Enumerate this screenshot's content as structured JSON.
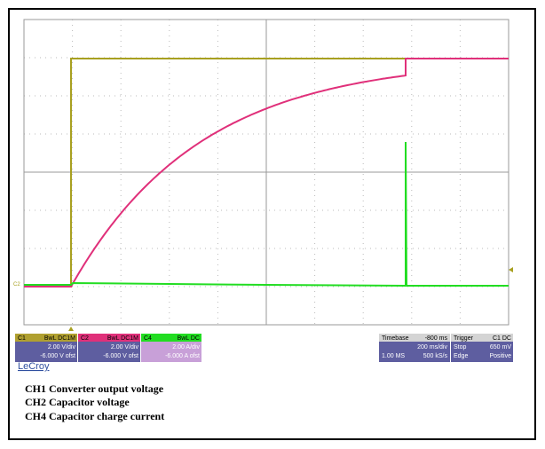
{
  "channels": [
    {
      "label": "C1",
      "coupling": "BwL DC1M",
      "scale": "2.00 V/div",
      "offset": "-6.000 V ofst"
    },
    {
      "label": "C2",
      "coupling": "BwL DC1M",
      "scale": "2.00 V/div",
      "offset": "-6.000 V ofst"
    },
    {
      "label": "C4",
      "coupling": "BwL DC",
      "scale": "2.00 A/div",
      "offset": "-6.000 A ofst"
    }
  ],
  "timebase": {
    "label": "Timebase",
    "delay": "-800 ms",
    "scale": "200 ms/div",
    "samples": "1.00 MS",
    "rate": "500 kS/s"
  },
  "trigger": {
    "label": "Trigger",
    "source": "C1 DC",
    "mode": "Stop",
    "level": "650 mV",
    "type": "Edge",
    "slope": "Positive"
  },
  "brand": "LeCroy",
  "captions": [
    "CH1 Converter output voltage",
    "CH2 Capacitor voltage",
    "CH4 Capacitor charge current"
  ]
}
